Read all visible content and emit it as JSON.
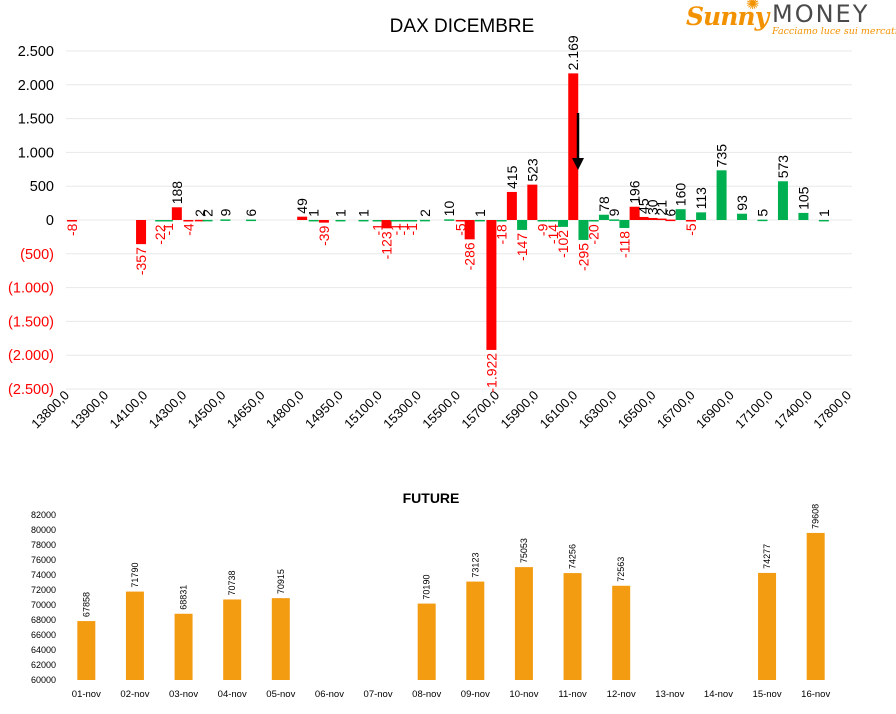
{
  "brand": {
    "name_part1": "Sunny",
    "name_part2": "MONEY",
    "tagline": "Facciamo luce sui mercati"
  },
  "colors": {
    "positive": "#00b050",
    "negative": "#ff0000",
    "future_bar": "#f39c12",
    "text": "#000000",
    "grid": "#e8e8e8"
  },
  "chart_data": [
    {
      "type": "bar",
      "title": "DAX DICEMBRE",
      "xlabel": "",
      "ylabel": "",
      "ylim": [
        -2500,
        2500
      ],
      "yticks": [
        2500,
        2000,
        1500,
        1000,
        500,
        0,
        -500,
        -1000,
        -1500,
        -2000,
        -2500
      ],
      "ytick_labels": [
        "2.500",
        "2.000",
        "1.500",
        "1.000",
        "500",
        "0",
        "(500)",
        "(1.000)",
        "(1.500)",
        "(2.000)",
        "(2.500)"
      ],
      "xtick_labels": [
        "13800,0",
        "13900,0",
        "14100,0",
        "14300,0",
        "14500,0",
        "14650,0",
        "14800,0",
        "14950,0",
        "15100,0",
        "15300,0",
        "15500,0",
        "15700,0",
        "15900,0",
        "16100,0",
        "16300,0",
        "16500,0",
        "16700,0",
        "16900,0",
        "17100,0",
        "17400,0",
        "17800,0"
      ],
      "grid": true,
      "annotation": "arrow pointing down near 16100",
      "bars": [
        {
          "pos": 0.0,
          "value": -8,
          "label": "-8",
          "color": "negative"
        },
        {
          "pos": 2.7,
          "value": -357,
          "label": "-357",
          "color": "negative"
        },
        {
          "pos": 3.45,
          "value": -22,
          "label": "-22",
          "color": "positive"
        },
        {
          "pos": 3.75,
          "value": -1,
          "label": "-1",
          "color": "positive"
        },
        {
          "pos": 4.1,
          "value": 188,
          "label": "188",
          "color": "negative"
        },
        {
          "pos": 4.55,
          "value": -4,
          "label": "-4",
          "color": "negative"
        },
        {
          "pos": 5.0,
          "value": 2,
          "label": "2",
          "color": "negative"
        },
        {
          "pos": 5.3,
          "value": 2,
          "label": "2",
          "color": "positive"
        },
        {
          "pos": 6.0,
          "value": 9,
          "label": "9",
          "color": "positive"
        },
        {
          "pos": 7.0,
          "value": 6,
          "label": "6",
          "color": "positive"
        },
        {
          "pos": 9.0,
          "value": 49,
          "label": "49",
          "color": "negative"
        },
        {
          "pos": 9.45,
          "value": 1,
          "label": "1",
          "color": "positive"
        },
        {
          "pos": 9.85,
          "value": -39,
          "label": "-39",
          "color": "negative"
        },
        {
          "pos": 10.5,
          "value": 1,
          "label": "1",
          "color": "positive"
        },
        {
          "pos": 11.4,
          "value": 1,
          "label": "1",
          "color": "positive"
        },
        {
          "pos": 11.95,
          "value": -1,
          "label": "-1",
          "color": "positive"
        },
        {
          "pos": 12.3,
          "value": -123,
          "label": "-123",
          "color": "negative"
        },
        {
          "pos": 12.65,
          "value": -1,
          "label": "-1",
          "color": "positive"
        },
        {
          "pos": 12.95,
          "value": -1,
          "label": "-1",
          "color": "positive"
        },
        {
          "pos": 13.3,
          "value": -1,
          "label": "-1",
          "color": "positive"
        },
        {
          "pos": 13.8,
          "value": 2,
          "label": "2",
          "color": "positive"
        },
        {
          "pos": 14.75,
          "value": 10,
          "label": "10",
          "color": "positive"
        },
        {
          "pos": 15.2,
          "value": -5,
          "label": "-5",
          "color": "negative"
        },
        {
          "pos": 15.55,
          "value": -286,
          "label": "-286",
          "color": "negative"
        },
        {
          "pos": 15.95,
          "value": 1,
          "label": "1",
          "color": "positive"
        },
        {
          "pos": 16.4,
          "value": -1922,
          "label": "-1.922",
          "color": "negative"
        },
        {
          "pos": 16.8,
          "value": -18,
          "label": "-18",
          "color": "positive"
        },
        {
          "pos": 17.2,
          "value": 415,
          "label": "415",
          "color": "negative"
        },
        {
          "pos": 17.6,
          "value": -147,
          "label": "-147",
          "color": "positive"
        },
        {
          "pos": 18.0,
          "value": 523,
          "label": "523",
          "color": "negative"
        },
        {
          "pos": 18.4,
          "value": -9,
          "label": "-9",
          "color": "positive"
        },
        {
          "pos": 18.8,
          "value": -14,
          "label": "-14",
          "color": "positive"
        },
        {
          "pos": 19.2,
          "value": -102,
          "label": "-102",
          "color": "positive"
        },
        {
          "pos": 19.6,
          "value": 2169,
          "label": "2.169",
          "color": "negative"
        },
        {
          "pos": 20.0,
          "value": -295,
          "label": "-295",
          "color": "positive"
        },
        {
          "pos": 20.4,
          "value": -20,
          "label": "-20",
          "color": "positive"
        },
        {
          "pos": 20.8,
          "value": 78,
          "label": "78",
          "color": "positive"
        },
        {
          "pos": 21.2,
          "value": 9,
          "label": "9",
          "color": "positive"
        },
        {
          "pos": 21.6,
          "value": -118,
          "label": "-118",
          "color": "positive"
        },
        {
          "pos": 22.0,
          "value": 196,
          "label": "196",
          "color": "negative"
        },
        {
          "pos": 22.35,
          "value": 45,
          "label": "45",
          "color": "negative"
        },
        {
          "pos": 22.7,
          "value": 30,
          "label": "30",
          "color": "negative"
        },
        {
          "pos": 23.05,
          "value": 21,
          "label": "21",
          "color": "negative"
        },
        {
          "pos": 23.4,
          "value": 6,
          "label": "6",
          "color": "negative"
        },
        {
          "pos": 23.8,
          "value": 160,
          "label": "160",
          "color": "positive"
        },
        {
          "pos": 24.2,
          "value": -5,
          "label": "-5",
          "color": "negative"
        },
        {
          "pos": 24.6,
          "value": 113,
          "label": "113",
          "color": "positive"
        },
        {
          "pos": 25.4,
          "value": 735,
          "label": "735",
          "color": "positive"
        },
        {
          "pos": 26.2,
          "value": 93,
          "label": "93",
          "color": "positive"
        },
        {
          "pos": 27.0,
          "value": 5,
          "label": "5",
          "color": "positive"
        },
        {
          "pos": 27.8,
          "value": 573,
          "label": "573",
          "color": "positive"
        },
        {
          "pos": 28.6,
          "value": 105,
          "label": "105",
          "color": "positive"
        },
        {
          "pos": 29.4,
          "value": 1,
          "label": "1",
          "color": "positive"
        }
      ]
    },
    {
      "type": "bar",
      "title": "FUTURE",
      "xlabel": "",
      "ylabel": "",
      "ylim": [
        60000,
        82000
      ],
      "yticks": [
        60000,
        62000,
        64000,
        66000,
        68000,
        70000,
        72000,
        74000,
        76000,
        78000,
        80000,
        82000
      ],
      "categories": [
        "01-nov",
        "02-nov",
        "03-nov",
        "04-nov",
        "05-nov",
        "06-nov",
        "07-nov",
        "08-nov",
        "09-nov",
        "10-nov",
        "11-nov",
        "12-nov",
        "13-nov",
        "14-nov",
        "15-nov",
        "16-nov"
      ],
      "values": [
        67858,
        71790,
        68831,
        70738,
        70915,
        null,
        null,
        70190,
        73123,
        75053,
        74256,
        72563,
        null,
        null,
        74277,
        79608
      ],
      "grid": false
    }
  ]
}
